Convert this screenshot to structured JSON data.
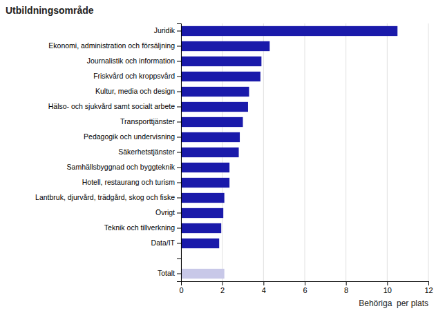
{
  "chart_data": {
    "type": "bar",
    "orientation": "horizontal",
    "title": "Utbildningsområde",
    "xlabel": "Behöriga  per plats",
    "categories": [
      "Juridik",
      "Ekonomi, administration och försäljning",
      "Journalistik och information",
      "Friskvård och kroppsvård",
      "Kultur, media och design",
      "Hälso- och sjukvård samt socialt arbete",
      "Transporttjänster",
      "Pedagogik och undervisning",
      "Säkerhetstjänster",
      "Samhällsbyggnad och byggteknik",
      "Hotell, restaurang och turism",
      "Lantbruk, djurvård, trädgård, skog och fiske",
      "Övrigt",
      "Teknik och tillverkning",
      "Data/IT",
      null,
      "Totalt"
    ],
    "values": [
      10.5,
      4.3,
      3.9,
      3.85,
      3.3,
      3.25,
      3.0,
      2.85,
      2.8,
      2.35,
      2.35,
      2.1,
      2.05,
      1.95,
      1.85,
      0,
      2.1
    ],
    "colors": [
      "#1a1aaa",
      "#1a1aaa",
      "#1a1aaa",
      "#1a1aaa",
      "#1a1aaa",
      "#1a1aaa",
      "#1a1aaa",
      "#1a1aaa",
      "#1a1aaa",
      "#1a1aaa",
      "#1a1aaa",
      "#1a1aaa",
      "#1a1aaa",
      "#1a1aaa",
      "#1a1aaa",
      "none",
      "#c8c8e8"
    ],
    "xlim": [
      0,
      12
    ],
    "xticks": [
      0,
      2,
      4,
      6,
      8,
      10,
      12
    ],
    "grid": true
  }
}
